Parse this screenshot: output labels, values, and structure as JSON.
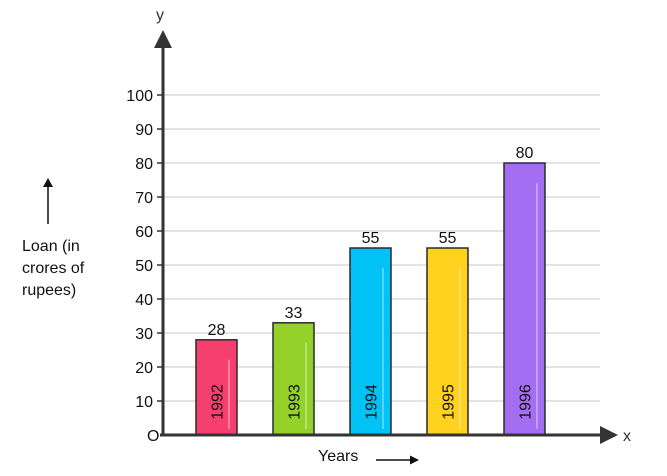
{
  "chart_data": {
    "type": "bar",
    "categories": [
      "1992",
      "1993",
      "1994",
      "1995",
      "1996"
    ],
    "values": [
      28,
      33,
      55,
      55,
      80
    ],
    "bar_colors": [
      "#f5406f",
      "#94d22a",
      "#00c2f5",
      "#ffd21f",
      "#a46ef2"
    ],
    "value_labels": [
      "28",
      "33",
      "55",
      "55",
      "80"
    ],
    "y_ticks": [
      10,
      20,
      30,
      40,
      50,
      60,
      70,
      80,
      90,
      100
    ],
    "ylim": [
      0,
      100
    ],
    "grid": true,
    "origin_label": "O",
    "x_axis_name": "x",
    "y_axis_name": "y",
    "xlabel": "Years",
    "ylabel_lines": [
      "Loan (in",
      "crores of",
      "rupees)"
    ]
  }
}
